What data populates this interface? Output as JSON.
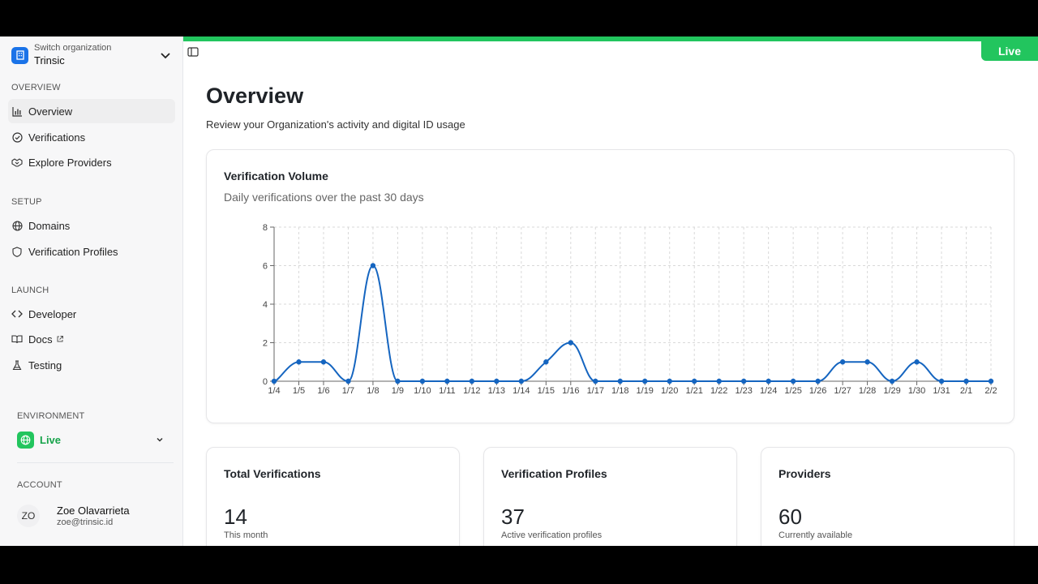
{
  "org": {
    "switch_label": "Switch organization",
    "name": "Trinsic"
  },
  "sections": {
    "overview": "OVERVIEW",
    "setup": "SETUP",
    "launch": "LAUNCH",
    "environment": "ENVIRONMENT",
    "account": "ACCOUNT"
  },
  "nav": {
    "overview": {
      "label": "Overview",
      "icon": "bar-chart-icon",
      "active": true
    },
    "verifications": {
      "label": "Verifications",
      "icon": "check-circle-icon"
    },
    "explore_providers": {
      "label": "Explore Providers",
      "icon": "handshake-icon"
    },
    "domains": {
      "label": "Domains",
      "icon": "globe-icon"
    },
    "verification_profiles": {
      "label": "Verification Profiles",
      "icon": "shield-icon"
    },
    "developer": {
      "label": "Developer",
      "icon": "code-icon"
    },
    "docs": {
      "label": "Docs",
      "icon": "book-icon"
    },
    "testing": {
      "label": "Testing",
      "icon": "flask-icon"
    }
  },
  "environment": {
    "selected": "Live"
  },
  "account": {
    "initials": "ZO",
    "name": "Zoe Olavarrieta",
    "email": "zoe@trinsic.id"
  },
  "topbar": {
    "badge": "Live"
  },
  "colors": {
    "accent_green": "#22c55e",
    "brand_blue": "#1a73e8",
    "line_blue": "#1565c0"
  },
  "page": {
    "title": "Overview",
    "subtitle": "Review your Organization's activity and digital ID usage"
  },
  "chart_card": {
    "title": "Verification Volume",
    "subtitle": "Daily verifications over the past 30 days"
  },
  "chart_data": {
    "type": "line",
    "x": [
      "1/4",
      "1/5",
      "1/6",
      "1/7",
      "1/8",
      "1/9",
      "1/10",
      "1/11",
      "1/12",
      "1/13",
      "1/14",
      "1/15",
      "1/16",
      "1/17",
      "1/18",
      "1/19",
      "1/20",
      "1/21",
      "1/22",
      "1/23",
      "1/24",
      "1/25",
      "1/26",
      "1/27",
      "1/28",
      "1/29",
      "1/30",
      "1/31",
      "2/1",
      "2/2"
    ],
    "values": [
      0,
      1,
      1,
      0,
      6,
      0,
      0,
      0,
      0,
      0,
      0,
      1,
      2,
      0,
      0,
      0,
      0,
      0,
      0,
      0,
      0,
      0,
      0,
      1,
      1,
      0,
      1,
      0,
      0,
      0
    ],
    "yticks": [
      0,
      2,
      4,
      6,
      8
    ],
    "ylim": [
      0,
      8
    ],
    "grid": true
  },
  "stats": [
    {
      "title": "Total Verifications",
      "value": "14",
      "caption": "This month"
    },
    {
      "title": "Verification Profiles",
      "value": "37",
      "caption": "Active verification profiles"
    },
    {
      "title": "Providers",
      "value": "60",
      "caption": "Currently available"
    }
  ]
}
